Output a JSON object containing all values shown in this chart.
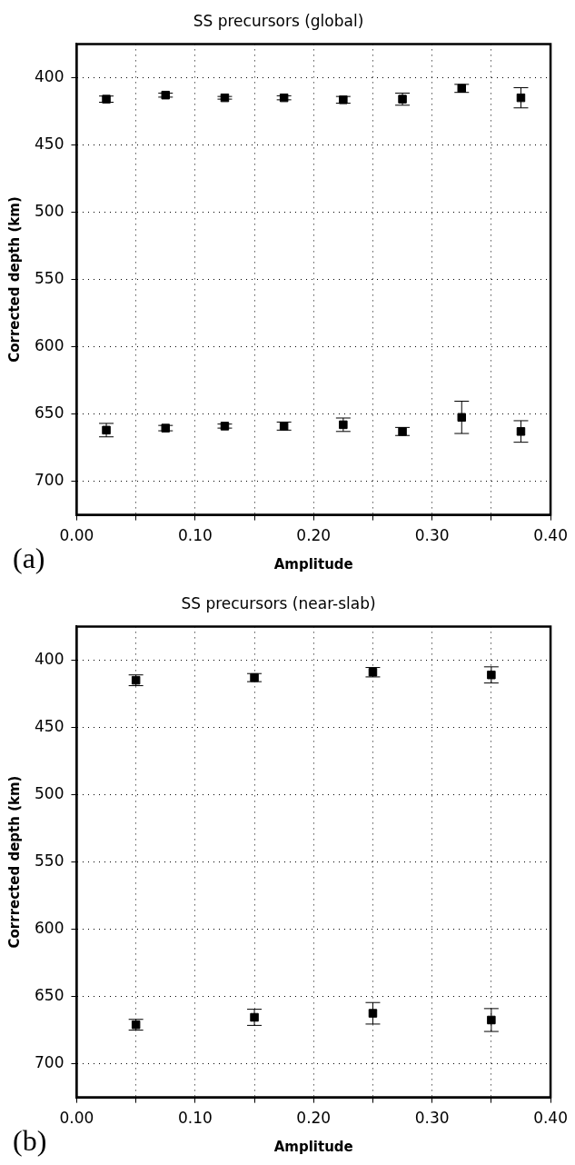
{
  "chart_data": [
    {
      "type": "scatter",
      "title": "SS precursors (global)",
      "xlabel": "Amplitude",
      "ylabel": "Corrected depth (km)",
      "annotations": [
        "(a)"
      ],
      "x": [
        0.025,
        0.075,
        0.125,
        0.175,
        0.225,
        0.275,
        0.325,
        0.375,
        0.025,
        0.075,
        0.125,
        0.175,
        0.225,
        0.275,
        0.325,
        0.375
      ],
      "values": [
        416,
        413,
        415,
        415,
        416.5,
        416,
        408,
        415,
        662,
        660.5,
        659,
        659,
        658,
        663,
        652.5,
        663
      ],
      "errors": [
        2.3,
        1.5,
        1,
        1.5,
        2.5,
        4.5,
        3,
        7.5,
        5,
        2,
        1.5,
        3,
        5,
        3,
        12,
        8
      ],
      "color": "#000000",
      "marker": "square",
      "grid": true,
      "xlim": [
        0,
        0.4
      ],
      "xticks": [
        {
          "value": 0,
          "label": "0.00"
        },
        {
          "value": 0.05,
          "label": null
        },
        {
          "value": 0.1,
          "label": "0.10"
        },
        {
          "value": 0.15,
          "label": null
        },
        {
          "value": 0.2,
          "label": "0.20"
        },
        {
          "value": 0.25,
          "label": null
        },
        {
          "value": 0.3,
          "label": "0.30"
        },
        {
          "value": 0.35,
          "label": null
        },
        {
          "value": 0.4,
          "label": "0.40"
        }
      ],
      "ylim": [
        725,
        375
      ],
      "yticks": [
        400,
        450,
        500,
        550,
        600,
        650,
        700
      ]
    },
    {
      "type": "scatter",
      "title": "SS precursors (near-slab)",
      "xlabel": "Amplitude",
      "ylabel": "Corrrected depth (km)",
      "annotations": [
        "(b)"
      ],
      "x": [
        0.05,
        0.15,
        0.25,
        0.35,
        0.05,
        0.15,
        0.25,
        0.35
      ],
      "values": [
        415,
        413,
        409,
        411,
        671,
        665.5,
        662.5,
        667.5
      ],
      "errors": [
        4,
        3,
        3.5,
        6,
        4,
        6,
        8,
        8.5
      ],
      "color": "#000000",
      "marker": "square",
      "grid": true,
      "xlim": [
        0,
        0.4
      ],
      "xticks": [
        {
          "value": 0,
          "label": "0.00"
        },
        {
          "value": 0.05,
          "label": null
        },
        {
          "value": 0.1,
          "label": "0.10"
        },
        {
          "value": 0.15,
          "label": null
        },
        {
          "value": 0.2,
          "label": "0.20"
        },
        {
          "value": 0.25,
          "label": null
        },
        {
          "value": 0.3,
          "label": "0.30"
        },
        {
          "value": 0.35,
          "label": null
        },
        {
          "value": 0.4,
          "label": "0.40"
        }
      ],
      "ylim": [
        725,
        375
      ],
      "yticks": [
        400,
        450,
        500,
        550,
        600,
        650,
        700
      ]
    }
  ]
}
